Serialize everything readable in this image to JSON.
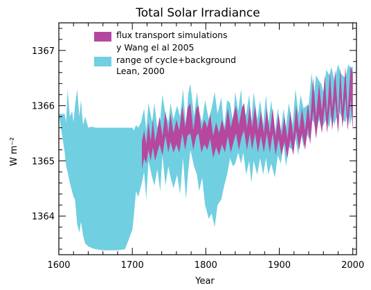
{
  "chart_data": {
    "type": "area",
    "title": "Total Solar Irradiance",
    "xlabel": "Year",
    "ylabel": "W m⁻²",
    "xlim": [
      1600,
      2005
    ],
    "ylim": [
      1363.3,
      1367.5
    ],
    "x_ticks": [
      1600,
      1700,
      1800,
      1900,
      2000
    ],
    "y_ticks": [
      1364,
      1365,
      1366,
      1367
    ],
    "legend_position": "top-left",
    "colors": {
      "lean_band": "#70cfe0",
      "wang_band": "#b5489e"
    },
    "series": [
      {
        "key": "lean",
        "name": "range of cycle+background Lean, 2000",
        "legend_lines": [
          "range of cycle+background",
          "Lean, 2000"
        ],
        "kind": "band",
        "x": [
          1600,
          1608,
          1610,
          1612,
          1615,
          1618,
          1620,
          1622,
          1625,
          1628,
          1630,
          1633,
          1636,
          1640,
          1645,
          1650,
          1660,
          1670,
          1680,
          1690,
          1700,
          1702,
          1705,
          1708,
          1712,
          1716,
          1719,
          1722,
          1727,
          1730,
          1734,
          1738,
          1741,
          1745,
          1749,
          1752,
          1756,
          1761,
          1765,
          1769,
          1773,
          1776,
          1779,
          1784,
          1788,
          1791,
          1795,
          1799,
          1804,
          1808,
          1812,
          1816,
          1821,
          1825,
          1829,
          1833,
          1837,
          1840,
          1844,
          1848,
          1851,
          1855,
          1859,
          1862,
          1865,
          1870,
          1874,
          1878,
          1882,
          1885,
          1889,
          1894,
          1898,
          1902,
          1906,
          1909,
          1913,
          1918,
          1922,
          1926,
          1929,
          1933,
          1937,
          1940,
          1944,
          1947,
          1950,
          1954,
          1957,
          1960,
          1964,
          1968,
          1971,
          1975,
          1980,
          1983,
          1986,
          1990,
          1994,
          1996,
          2000
        ],
        "upper": [
          1365.85,
          1365.85,
          1365.7,
          1366.3,
          1365.8,
          1365.9,
          1365.7,
          1366.0,
          1366.3,
          1365.8,
          1366.1,
          1365.65,
          1365.8,
          1365.6,
          1365.62,
          1365.6,
          1365.6,
          1365.6,
          1365.6,
          1365.6,
          1365.6,
          1365.55,
          1365.65,
          1365.6,
          1365.7,
          1365.95,
          1365.55,
          1366.05,
          1365.7,
          1366.05,
          1365.6,
          1365.75,
          1366.2,
          1365.85,
          1365.7,
          1366.05,
          1365.75,
          1366.0,
          1365.8,
          1366.3,
          1365.6,
          1366.2,
          1366.4,
          1365.8,
          1366.25,
          1365.9,
          1365.7,
          1366.1,
          1365.75,
          1365.95,
          1366.25,
          1365.85,
          1366.15,
          1365.6,
          1366.1,
          1366.05,
          1365.7,
          1366.25,
          1365.9,
          1366.3,
          1365.75,
          1365.85,
          1366.2,
          1365.7,
          1366.25,
          1365.75,
          1366.1,
          1365.65,
          1366.2,
          1365.65,
          1366.1,
          1365.5,
          1365.95,
          1365.55,
          1365.95,
          1365.6,
          1366.05,
          1365.65,
          1366.3,
          1365.85,
          1366.2,
          1365.95,
          1366.0,
          1366.0,
          1366.6,
          1366.15,
          1366.55,
          1366.45,
          1366.4,
          1366.25,
          1366.65,
          1366.55,
          1366.7,
          1366.45,
          1366.75,
          1366.6,
          1366.55,
          1366.5,
          1366.75,
          1366.7,
          1366.7
        ],
        "lower": [
          1365.85,
          1365.15,
          1364.9,
          1364.8,
          1364.6,
          1364.45,
          1364.35,
          1364.3,
          1363.85,
          1363.7,
          1363.9,
          1363.65,
          1363.5,
          1363.45,
          1363.42,
          1363.4,
          1363.38,
          1363.38,
          1363.38,
          1363.4,
          1363.75,
          1364.0,
          1364.45,
          1364.35,
          1364.55,
          1364.8,
          1364.3,
          1365.0,
          1364.7,
          1364.55,
          1364.85,
          1364.45,
          1365.1,
          1364.55,
          1364.9,
          1364.7,
          1364.5,
          1364.75,
          1364.4,
          1365.05,
          1364.3,
          1364.8,
          1365.2,
          1364.9,
          1364.75,
          1364.45,
          1364.7,
          1364.2,
          1363.95,
          1364.05,
          1363.8,
          1364.2,
          1364.3,
          1364.55,
          1364.75,
          1365.05,
          1364.9,
          1364.95,
          1365.15,
          1364.95,
          1365.15,
          1364.75,
          1365.0,
          1364.6,
          1365.0,
          1364.75,
          1365.05,
          1364.75,
          1365.05,
          1364.75,
          1364.95,
          1364.7,
          1365.1,
          1364.95,
          1365.3,
          1364.9,
          1365.25,
          1365.2,
          1365.4,
          1365.1,
          1365.55,
          1365.25,
          1365.5,
          1365.4,
          1365.75,
          1365.7,
          1365.5,
          1365.75,
          1365.6,
          1365.65,
          1365.75,
          1365.6,
          1365.85,
          1365.65,
          1365.9,
          1365.85,
          1365.75,
          1365.7,
          1365.95,
          1365.65,
          1365.9
        ]
      },
      {
        "key": "wang",
        "name": "flux transport simulations y Wang el al 2005",
        "legend_lines": [
          "flux transport simulations",
          "y Wang el al  2005"
        ],
        "kind": "band",
        "x": [
          1713,
          1716,
          1719,
          1722,
          1725,
          1728,
          1731,
          1734,
          1737,
          1741,
          1745,
          1749,
          1752,
          1756,
          1760,
          1764,
          1768,
          1772,
          1775,
          1779,
          1783,
          1787,
          1790,
          1794,
          1798,
          1802,
          1806,
          1810,
          1814,
          1818,
          1822,
          1826,
          1830,
          1834,
          1838,
          1841,
          1845,
          1849,
          1852,
          1856,
          1860,
          1863,
          1867,
          1871,
          1875,
          1879,
          1883,
          1887,
          1891,
          1895,
          1899,
          1903,
          1907,
          1911,
          1915,
          1919,
          1923,
          1927,
          1931,
          1935,
          1939,
          1942,
          1946,
          1950,
          1954,
          1958,
          1962,
          1965,
          1969,
          1972,
          1976,
          1980,
          1983,
          1986,
          1990,
          1993,
          1997,
          2000
        ],
        "upper": [
          1365.35,
          1365.55,
          1365.3,
          1365.7,
          1365.35,
          1365.75,
          1365.35,
          1365.55,
          1365.8,
          1365.45,
          1365.9,
          1365.5,
          1365.85,
          1365.5,
          1365.75,
          1365.55,
          1366.0,
          1365.6,
          1365.95,
          1366.05,
          1365.55,
          1365.95,
          1366.0,
          1365.55,
          1365.75,
          1365.6,
          1365.85,
          1365.45,
          1365.7,
          1365.5,
          1365.75,
          1365.55,
          1365.95,
          1365.6,
          1365.85,
          1366.0,
          1365.65,
          1365.95,
          1366.05,
          1365.6,
          1366.0,
          1365.6,
          1366.0,
          1365.55,
          1365.9,
          1365.5,
          1365.95,
          1365.5,
          1365.95,
          1365.45,
          1365.85,
          1365.45,
          1365.8,
          1365.4,
          1365.9,
          1365.45,
          1366.0,
          1365.55,
          1365.95,
          1365.55,
          1366.05,
          1365.7,
          1366.5,
          1365.8,
          1366.4,
          1365.9,
          1366.55,
          1365.85,
          1366.6,
          1365.95,
          1366.65,
          1365.8,
          1366.7,
          1365.95,
          1366.7,
          1365.85,
          1366.7,
          1366.6
        ],
        "lower": [
          1364.85,
          1365.05,
          1364.95,
          1365.2,
          1365.0,
          1365.25,
          1365.0,
          1365.15,
          1365.3,
          1365.1,
          1365.45,
          1365.15,
          1365.35,
          1365.15,
          1365.3,
          1365.15,
          1365.5,
          1365.2,
          1365.45,
          1365.5,
          1365.2,
          1365.45,
          1365.5,
          1365.15,
          1365.3,
          1365.2,
          1365.4,
          1365.05,
          1365.25,
          1365.1,
          1365.3,
          1365.15,
          1365.45,
          1365.15,
          1365.35,
          1365.5,
          1365.2,
          1365.45,
          1365.55,
          1365.2,
          1365.5,
          1365.2,
          1365.5,
          1365.15,
          1365.45,
          1365.15,
          1365.5,
          1365.15,
          1365.5,
          1365.1,
          1365.4,
          1365.1,
          1365.35,
          1365.05,
          1365.4,
          1365.1,
          1365.55,
          1365.2,
          1365.5,
          1365.2,
          1365.6,
          1365.3,
          1365.9,
          1365.4,
          1365.85,
          1365.5,
          1366.0,
          1365.5,
          1366.05,
          1365.55,
          1366.1,
          1365.5,
          1366.15,
          1365.6,
          1366.15,
          1365.55,
          1366.1,
          1365.55
        ]
      }
    ]
  }
}
